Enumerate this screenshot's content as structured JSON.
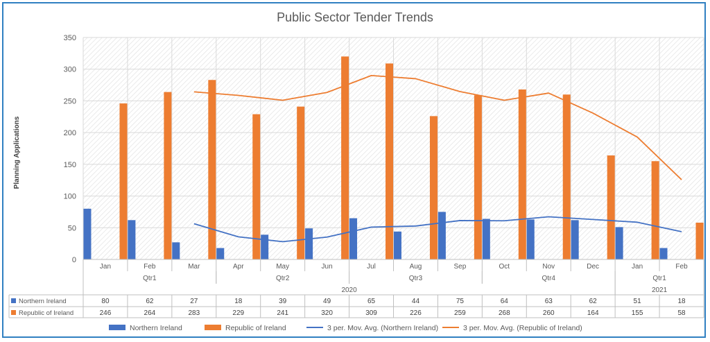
{
  "chart_data": {
    "type": "bar",
    "title": "Public Sector Tender Trends",
    "ylabel": "Planning Applications",
    "xlabel": "",
    "ylim": [
      0,
      350
    ],
    "yticks": [
      0,
      50,
      100,
      150,
      200,
      250,
      300,
      350
    ],
    "grid": true,
    "legend_position": "bottom",
    "categories": [
      "Jan",
      "Feb",
      "Mar",
      "Apr",
      "May",
      "Jun",
      "Jul",
      "Aug",
      "Sep",
      "Oct",
      "Nov",
      "Dec",
      "Jan",
      "Feb"
    ],
    "quarters": [
      {
        "label": "Qtr1",
        "start": 0,
        "end": 2
      },
      {
        "label": "Qtr2",
        "start": 3,
        "end": 5
      },
      {
        "label": "Qtr3",
        "start": 6,
        "end": 8
      },
      {
        "label": "Qtr4",
        "start": 9,
        "end": 11
      },
      {
        "label": "Qtr1",
        "start": 12,
        "end": 13
      }
    ],
    "years": [
      {
        "label": "2020",
        "start": 0,
        "end": 11
      },
      {
        "label": "2021",
        "start": 12,
        "end": 13
      }
    ],
    "series": [
      {
        "name": "Northern Ireland",
        "type": "bar",
        "color": "#4472c4",
        "values": [
          80,
          62,
          27,
          18,
          39,
          49,
          65,
          44,
          75,
          64,
          63,
          62,
          51,
          18
        ]
      },
      {
        "name": "Republic of Ireland",
        "type": "bar",
        "color": "#ed7d31",
        "values": [
          246,
          264,
          283,
          229,
          241,
          320,
          309,
          226,
          259,
          268,
          260,
          164,
          155,
          58
        ]
      },
      {
        "name": "3 per. Mov. Avg. (Northern Ireland)",
        "type": "line",
        "color": "#4472c4",
        "values": [
          null,
          null,
          56.3,
          35.7,
          28,
          35.3,
          51,
          52.7,
          61.3,
          61,
          67.3,
          63,
          58.7,
          43.7
        ]
      },
      {
        "name": "3 per. Mov. Avg. (Republic of Ireland)",
        "type": "line",
        "color": "#ed7d31",
        "values": [
          null,
          null,
          264.3,
          258.7,
          251,
          263.3,
          290,
          285,
          264.7,
          251,
          262.3,
          230.7,
          193,
          125.7
        ]
      }
    ]
  }
}
